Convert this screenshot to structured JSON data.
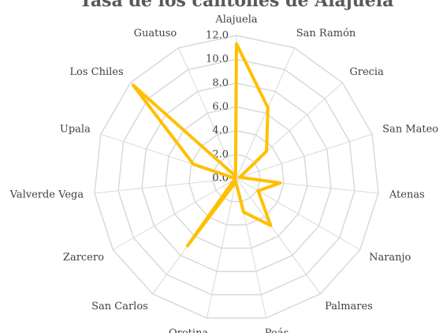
{
  "chart_data": {
    "type": "radar",
    "title": "Tasa de los cantones de Alajuela",
    "categories": [
      "Alajuela",
      "San Ramón",
      "Grecia",
      "San Mateo",
      "Atenas",
      "Naranjo",
      "Palmares",
      "Poás",
      "Orotina",
      "San Carlos",
      "Zarcero",
      "Valverde Vega",
      "Upala",
      "Los Chiles",
      "Guatuso"
    ],
    "series": [
      {
        "color": "#ffc000",
        "values": [
          11.3,
          6.5,
          3.4,
          0.3,
          3.7,
          2.1,
          4.9,
          2.9,
          0.3,
          7.0,
          0.2,
          0.1,
          3.8,
          11.7,
          0.2
        ]
      }
    ],
    "ylim": [
      0,
      12
    ],
    "yticks": [
      {
        "value": 0,
        "label": "0.0"
      },
      {
        "value": 2,
        "label": "2.0"
      },
      {
        "value": 4,
        "label": "4.0"
      },
      {
        "value": 6,
        "label": "6.0"
      },
      {
        "value": 8,
        "label": "8.0"
      },
      {
        "value": 10,
        "label": "10.0"
      },
      {
        "value": 12,
        "label": "12.0"
      }
    ],
    "grid": true
  }
}
